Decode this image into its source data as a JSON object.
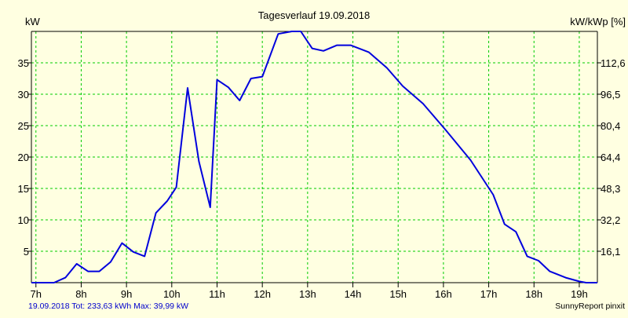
{
  "colors": {
    "background": "#ffffe1",
    "plot_background": "#ffffe1",
    "grid": "#00cc00",
    "line": "#0000dd",
    "axis": "#000000",
    "footer_left_text": "#0000cc",
    "text": "#000000"
  },
  "chart_data": {
    "type": "line",
    "title": "Tagesverlauf 19.09.2018",
    "ylabel_left": "kW",
    "ylabel_right": "kW/kWp [%]",
    "grid": true,
    "x_tick_labels": [
      "7h",
      "8h",
      "9h",
      "10h",
      "11h",
      "12h",
      "13h",
      "14h",
      "15h",
      "16h",
      "17h",
      "18h",
      "19h"
    ],
    "x_ticks": [
      7,
      8,
      9,
      10,
      11,
      12,
      13,
      14,
      15,
      16,
      17,
      18,
      19
    ],
    "xlim": [
      6.9,
      19.4
    ],
    "ylim": [
      0,
      40
    ],
    "y_ticks_left": [
      5,
      10,
      15,
      20,
      25,
      30,
      35
    ],
    "y_ticks_left_labels": [
      "5",
      "10",
      "15",
      "20",
      "25",
      "30",
      "35"
    ],
    "y_ticks_right_labels": [
      "16,1",
      "32,2",
      "48,3",
      "64,4",
      "80,4",
      "96,5",
      "112,6"
    ],
    "series": [
      {
        "x": [
          6.9,
          7.4,
          7.65,
          7.9,
          8.15,
          8.4,
          8.65,
          8.9,
          9.15,
          9.4,
          9.65,
          9.9,
          10.1,
          10.35,
          10.6,
          10.85,
          11.0,
          11.25,
          11.5,
          11.75,
          12.0,
          12.35,
          12.65,
          12.85,
          13.1,
          13.35,
          13.65,
          13.95,
          14.35,
          14.75,
          15.1,
          15.55,
          16.05,
          16.6,
          17.1,
          17.35,
          17.6,
          17.85,
          18.1,
          18.35,
          18.7,
          19.0,
          19.15,
          19.4
        ],
        "y": [
          0,
          0,
          0.8,
          3,
          1.8,
          1.8,
          3.3,
          6.3,
          4.9,
          4.2,
          11.1,
          13,
          15.2,
          31,
          19.3,
          12,
          32.3,
          31.1,
          29,
          32.5,
          32.8,
          39.6,
          40.1,
          40.3,
          37.3,
          36.9,
          37.8,
          37.8,
          36.7,
          34.2,
          31.3,
          28.5,
          24.3,
          19.5,
          14,
          9.3,
          8.1,
          4.2,
          3.5,
          1.8,
          0.8,
          0.2,
          0,
          0
        ]
      }
    ]
  },
  "footer": {
    "left": "19.09.2018 Tot: 233,63 kWh Max: 39,99 kW",
    "right": "SunnyReport pinxit"
  }
}
